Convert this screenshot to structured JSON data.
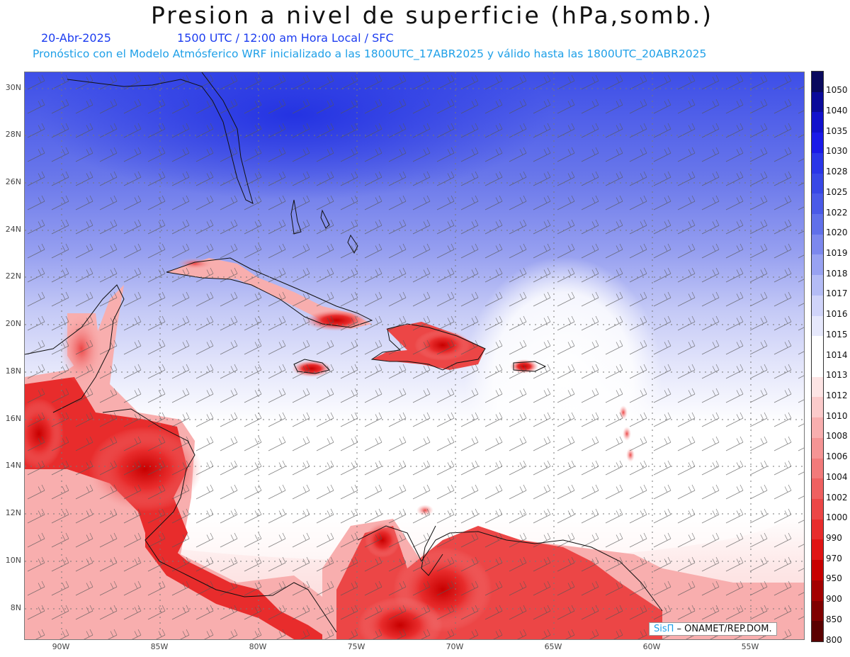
{
  "header": {
    "title": "Presion a nivel de superficie (hPa,somb.)",
    "date": "20-Abr-2025",
    "time_info": "1500 UTC / 12:00 am Hora Local / SFC",
    "model_info": "Pronóstico con el Modelo Atmósferico WRF inicializado a las 1800UTC_17ABR2025 y válido hasta las  1800UTC_20ABR2025"
  },
  "map": {
    "lat_labels": [
      "30N",
      "28N",
      "26N",
      "24N",
      "22N",
      "20N",
      "18N",
      "16N",
      "14N",
      "12N",
      "10N",
      "8N"
    ],
    "lon_labels": [
      "90W",
      "85W",
      "80W",
      "75W",
      "70W",
      "65W",
      "60W",
      "55W"
    ],
    "credit": {
      "brand": "SisΠ",
      "text": " – ONAMET/REP.DOM."
    }
  },
  "colorbar": {
    "levels": [
      "1050",
      "1040",
      "1035",
      "1030",
      "1028",
      "1025",
      "1022",
      "1020",
      "1019",
      "1018",
      "1017",
      "1016",
      "1015",
      "1014",
      "1013",
      "1012",
      "1010",
      "1008",
      "1006",
      "1004",
      "1002",
      "1000",
      "990",
      "970",
      "950",
      "900",
      "850",
      "800"
    ],
    "colors": [
      "#0a0a5e",
      "#0b0b9a",
      "#1111cc",
      "#1a1ae8",
      "#2a36e8",
      "#3848e6",
      "#4a5ae8",
      "#6070ea",
      "#7c88ee",
      "#98a2f2",
      "#b4bcf6",
      "#d0d4fa",
      "#e6e8fc",
      "#ffffff",
      "#ffffff",
      "#fde4e4",
      "#fbcaca",
      "#f8aeae",
      "#f59494",
      "#f27a7a",
      "#ef6060",
      "#ec4646",
      "#e82c2c",
      "#e01414",
      "#c80000",
      "#a40000",
      "#800000",
      "#5a0000"
    ]
  }
}
